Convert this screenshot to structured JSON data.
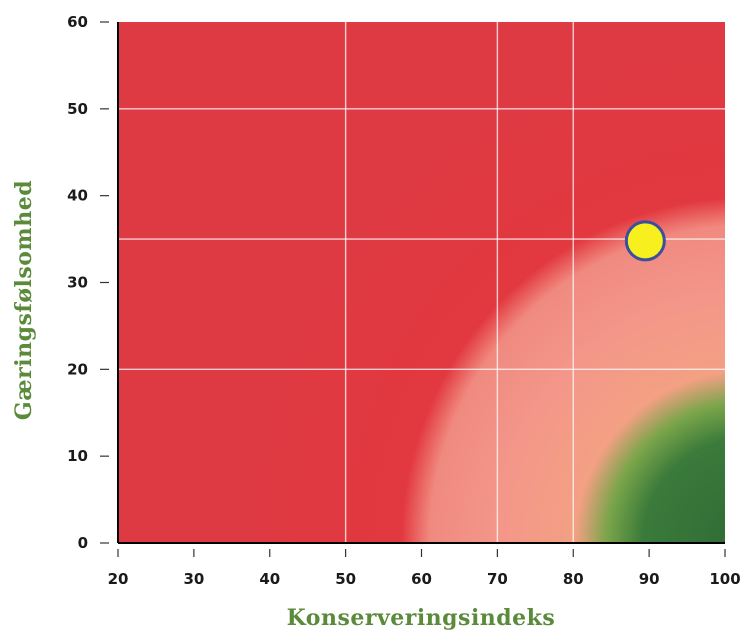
{
  "chart_data": {
    "type": "heatmap",
    "xlabel": "Konserveringsindeks",
    "ylabel": "Gæringsfølsomhed",
    "xlim": [
      20,
      100
    ],
    "ylim": [
      0,
      60
    ],
    "x_ticks": [
      20,
      30,
      40,
      50,
      60,
      70,
      80,
      90,
      100
    ],
    "y_ticks": [
      0,
      10,
      20,
      30,
      40,
      50,
      60
    ],
    "x_gridlines": [
      50,
      70,
      80
    ],
    "y_gridlines": [
      20,
      35,
      50
    ],
    "zones": [
      {
        "zone": "red",
        "color": "#e2383f"
      },
      {
        "zone": "light-red",
        "color": "#f08a80"
      },
      {
        "zone": "green",
        "color": "#3f7a3a"
      }
    ],
    "points": [
      {
        "x": 89.5,
        "y": 34.8,
        "color": "#f7ef1e",
        "stroke": "#3a4fa0"
      }
    ]
  }
}
